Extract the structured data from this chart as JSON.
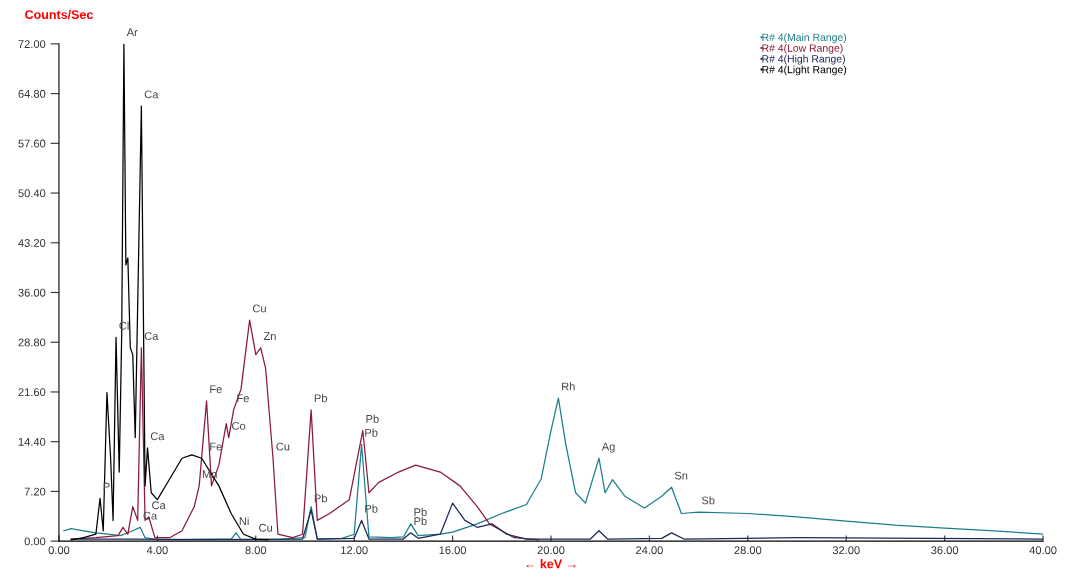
{
  "chart_data": {
    "type": "line",
    "xlabel": "← keV →",
    "ylabel": "Counts/Sec",
    "xlim": [
      0,
      40
    ],
    "ylim": [
      0,
      72
    ],
    "xticks": [
      {
        "value": 0,
        "label": "0.00"
      },
      {
        "value": 4,
        "label": "4.00"
      },
      {
        "value": 8,
        "label": "8.00"
      },
      {
        "value": 12,
        "label": "12.00"
      },
      {
        "value": 16,
        "label": "16.00"
      },
      {
        "value": 20,
        "label": "20.00"
      },
      {
        "value": 24,
        "label": "24.00"
      },
      {
        "value": 28,
        "label": "28.00"
      },
      {
        "value": 32,
        "label": "32.00"
      },
      {
        "value": 36,
        "label": "36.00"
      },
      {
        "value": 40,
        "label": "40.00"
      }
    ],
    "yticks": [
      {
        "value": 0,
        "label": "0.00"
      },
      {
        "value": 7.2,
        "label": "7.20"
      },
      {
        "value": 14.4,
        "label": "14.40"
      },
      {
        "value": 21.6,
        "label": "21.60"
      },
      {
        "value": 28.8,
        "label": "28.80"
      },
      {
        "value": 36,
        "label": "36.00"
      },
      {
        "value": 43.2,
        "label": "43.20"
      },
      {
        "value": 50.4,
        "label": "50.40"
      },
      {
        "value": 57.6,
        "label": "57.60"
      },
      {
        "value": 64.8,
        "label": "64.80"
      },
      {
        "value": 72,
        "label": "72.00"
      }
    ],
    "grid": false,
    "legend": "top right",
    "marker": "none",
    "line_style": "solid",
    "series": [
      {
        "name": "R# 4(Main Range)",
        "color": "#1a7f8a",
        "x": [
          0.2,
          0.5,
          1.0,
          1.5,
          2.0,
          2.5,
          3.0,
          3.3,
          3.5,
          4.0,
          5.0,
          6.0,
          7.0,
          7.2,
          7.4,
          9.0,
          10.0,
          10.25,
          10.5,
          11.5,
          12.0,
          12.3,
          12.6,
          13.5,
          14.0,
          14.3,
          14.6,
          15.5,
          16.0,
          17.0,
          18.0,
          19.0,
          19.6,
          20.0,
          20.3,
          20.6,
          21.0,
          21.4,
          21.95,
          22.2,
          22.5,
          23.0,
          23.8,
          24.5,
          24.9,
          25.3,
          26.0,
          28.0,
          30.0,
          32.0,
          34.0,
          36.0,
          38.0,
          40.0
        ],
        "values": [
          1.5,
          1.8,
          1.5,
          1.2,
          1.0,
          0.8,
          1.5,
          2.0,
          0.5,
          0.2,
          0.2,
          0.3,
          0.3,
          1.2,
          0.2,
          0.3,
          0.5,
          5.0,
          0.3,
          0.4,
          1.0,
          14.0,
          0.6,
          0.5,
          0.6,
          2.5,
          0.8,
          1.0,
          1.3,
          2.5,
          4.0,
          5.3,
          9.0,
          16.0,
          20.7,
          14.0,
          7.0,
          5.5,
          12.0,
          7.0,
          8.9,
          6.5,
          4.8,
          6.5,
          7.8,
          4.0,
          4.2,
          4.0,
          3.5,
          2.9,
          2.3,
          1.9,
          1.5,
          1.0
        ]
      },
      {
        "name": "R# 4(Low Range)",
        "color": "#8b1a3a",
        "x": [
          0.5,
          1.5,
          2.4,
          2.6,
          2.8,
          3.0,
          3.2,
          3.35,
          3.5,
          3.65,
          3.9,
          4.5,
          5.0,
          5.5,
          5.7,
          6.0,
          6.2,
          6.5,
          6.8,
          6.9,
          7.1,
          7.4,
          7.75,
          8.0,
          8.2,
          8.4,
          8.7,
          8.9,
          9.5,
          9.9,
          10.25,
          10.5,
          11.0,
          11.8,
          12.35,
          12.6,
          13.0,
          13.8,
          14.5,
          15.5,
          16.3,
          17.0,
          17.5,
          18.5,
          19.5
        ],
        "values": [
          0.3,
          0.5,
          0.8,
          2.0,
          1.0,
          5.0,
          3.0,
          28.0,
          3.0,
          3.5,
          0.5,
          0.5,
          1.5,
          5.0,
          8.0,
          20.3,
          8.0,
          11.0,
          17.0,
          15.0,
          19.0,
          22.0,
          32.0,
          27.0,
          28.0,
          25.0,
          12.0,
          1.0,
          0.5,
          1.0,
          19.0,
          3.0,
          4.0,
          6.0,
          16.0,
          7.0,
          8.5,
          10.0,
          11.0,
          10.0,
          8.0,
          5.0,
          2.5,
          0.5,
          0.2
        ]
      },
      {
        "name": "R# 4(High Range)",
        "color": "#1a2a5a",
        "x": [
          0.5,
          3.0,
          6.0,
          9.9,
          10.25,
          10.5,
          12.0,
          12.3,
          12.6,
          14.0,
          14.3,
          14.6,
          15.5,
          16.0,
          16.5,
          17.0,
          17.6,
          18.2,
          19.0,
          21.6,
          21.95,
          22.3,
          24.5,
          24.9,
          25.4,
          30.0,
          40.0
        ],
        "values": [
          0.3,
          0.3,
          0.2,
          0.3,
          4.5,
          0.3,
          0.4,
          3.0,
          0.3,
          0.3,
          1.2,
          0.4,
          1.0,
          5.5,
          3.0,
          2.0,
          2.5,
          1.0,
          0.3,
          0.3,
          1.5,
          0.3,
          0.4,
          1.2,
          0.3,
          0.5,
          0.3
        ]
      },
      {
        "name": "R# 4(Light Range)",
        "color": "#000000",
        "x": [
          0.5,
          1.0,
          1.5,
          1.67,
          1.8,
          1.95,
          2.1,
          2.2,
          2.32,
          2.45,
          2.55,
          2.64,
          2.72,
          2.8,
          2.9,
          3.0,
          3.1,
          3.35,
          3.5,
          3.6,
          3.75,
          4.0,
          4.5,
          5.0,
          5.4,
          5.8,
          6.5,
          7.0,
          7.5,
          8.0,
          8.5
        ],
        "values": [
          0.2,
          0.5,
          1.0,
          6.2,
          1.5,
          21.5,
          12.0,
          3.0,
          29.5,
          10.0,
          30.0,
          72.0,
          40.0,
          41.0,
          28.0,
          27.0,
          15.0,
          63.0,
          8.0,
          13.5,
          7.0,
          6.0,
          9.0,
          12.0,
          12.5,
          12.0,
          8.0,
          4.0,
          1.0,
          0.3,
          0.2
        ]
      }
    ],
    "annotations": [
      {
        "text": "Ar",
        "x": 2.64,
        "y": 72.0
      },
      {
        "text": "Ca",
        "x": 3.35,
        "y": 63.0
      },
      {
        "text": "Cl",
        "x": 2.32,
        "y": 29.5
      },
      {
        "text": "Ca",
        "x": 3.35,
        "y": 28.0
      },
      {
        "text": "Ca",
        "x": 3.6,
        "y": 13.5
      },
      {
        "text": "P",
        "x": 1.67,
        "y": 6.2
      },
      {
        "text": "Fe",
        "x": 6.0,
        "y": 20.3
      },
      {
        "text": "Fe",
        "x": 6.0,
        "y": 12.0
      },
      {
        "text": "Fe",
        "x": 7.1,
        "y": 19.0
      },
      {
        "text": "Co",
        "x": 6.9,
        "y": 15.0
      },
      {
        "text": "Mn",
        "x": 5.7,
        "y": 8.0
      },
      {
        "text": "Ca",
        "x": 3.65,
        "y": 3.5
      },
      {
        "text": "Ca",
        "x": 3.3,
        "y": 2.0
      },
      {
        "text": "Ni",
        "x": 7.2,
        "y": 1.2
      },
      {
        "text": "Cu",
        "x": 8.0,
        "y": 0.25
      },
      {
        "text": "Cu",
        "x": 7.75,
        "y": 32.0
      },
      {
        "text": "Zn",
        "x": 8.2,
        "y": 28.0
      },
      {
        "text": "Cu",
        "x": 8.7,
        "y": 12.0
      },
      {
        "text": "Pb",
        "x": 10.25,
        "y": 19.0
      },
      {
        "text": "Pb",
        "x": 12.35,
        "y": 16.0
      },
      {
        "text": "Pb",
        "x": 12.3,
        "y": 14.0
      },
      {
        "text": "Pb",
        "x": 10.25,
        "y": 4.5
      },
      {
        "text": "Pb",
        "x": 12.3,
        "y": 3.0
      },
      {
        "text": "Pb",
        "x": 14.3,
        "y": 2.5
      },
      {
        "text": "Pb",
        "x": 14.3,
        "y": 1.2
      },
      {
        "text": "Rh",
        "x": 20.3,
        "y": 20.7
      },
      {
        "text": "Ag",
        "x": 21.95,
        "y": 12.0
      },
      {
        "text": "Sn",
        "x": 24.9,
        "y": 7.8
      },
      {
        "text": "Sb",
        "x": 26.0,
        "y": 4.2
      }
    ]
  }
}
